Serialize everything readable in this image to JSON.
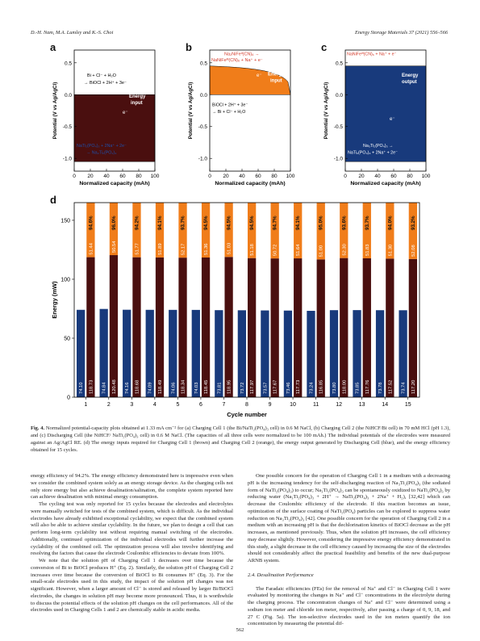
{
  "header": {
    "authors": "D.-H. Nam, M.A. Lumley and K.-S. Choi",
    "journal": "Energy Storage Materials 37 (2021) 556–566"
  },
  "colors": {
    "dark_red": "#4a0f0f",
    "orange": "#f07d1a",
    "blue": "#183a7c",
    "ann_red": "#d23a2a",
    "ann_blue": "#1f4fa8"
  },
  "panels": {
    "a": {
      "letter": "a",
      "ylabel": "Potential (V vs Ag/AgCl)",
      "xlabel": "Normalized capacity (mAh)",
      "ann_top": "Bi + Cl⁻ + H₂O",
      "ann_top2": "→ BiOCl + 2H⁺ + 3e⁻",
      "ann_bot": "NaTi₂(PO₄)₃ + 2Na⁺ + 2e⁻",
      "ann_bot2": "→ Na₃Ti₂(PO₄)₃",
      "energy": "Energy",
      "energy2": "input",
      "electron": "e⁻"
    },
    "b": {
      "letter": "b",
      "ylabel": "Potential (V vs Ag/AgCl)",
      "xlabel": "Normalized capacity (mAh)",
      "ann_top": "Na₂NiFeᴵᴵ(CN)₆ →",
      "ann_top2": "NaNiFeᴵᴵᴵ(CN)₆ + Na⁺ + e⁻",
      "ann_bot": "BiOCl + 2H⁺ + 3e⁻",
      "ann_bot2": "→ Bi + Cl⁻ + H₂O",
      "energy": "Energy",
      "energy2": "input",
      "electron": "e⁻"
    },
    "c": {
      "letter": "c",
      "ylabel": "Potential (V vs Ag/AgCl)",
      "xlabel": "Normalized capacity (mAh)",
      "ann_top": "NaNiFeᴵᴵᴵ(CN)₆ + Na⁺ + e⁻",
      "ann_top2": "→ Na₂NiFeᴵᴵ(CN)₆",
      "ann_bot": "Na₃Ti₂(PO₄)₃ →",
      "ann_bot2": "NaTi₂(PO₄)₃ + 2Na⁺ + 2e⁻",
      "energy": "Energy",
      "energy2": "output",
      "electron": "e⁻"
    }
  },
  "chart_data": [
    {
      "panel": "a",
      "type": "area",
      "x_range": [
        0,
        100
      ],
      "ylim": [
        -1.2,
        0.7
      ],
      "xticks": [
        0,
        20,
        40,
        60,
        80,
        100
      ],
      "yticks": [
        -1.0,
        -0.5,
        0.0,
        0.5
      ],
      "top_curve": 0.0,
      "bottom_curve": -1.05
    },
    {
      "panel": "b",
      "type": "area",
      "x_range": [
        0,
        100
      ],
      "ylim": [
        -1.2,
        0.7
      ],
      "xticks": [
        0,
        20,
        40,
        60,
        80,
        100
      ],
      "yticks": [
        -1.0,
        -0.5,
        0.0,
        0.5
      ],
      "top_curve": 0.45,
      "bottom_curve": 0.0
    },
    {
      "panel": "c",
      "type": "area",
      "x_range": [
        0,
        100
      ],
      "ylim": [
        -1.2,
        0.7
      ],
      "xticks": [
        0,
        20,
        40,
        60,
        80,
        100
      ],
      "yticks": [
        -1.0,
        -0.5,
        0.0,
        0.5
      ],
      "top_curve": 0.45,
      "bottom_curve": -1.05
    },
    {
      "panel": "d",
      "type": "bar",
      "xlabel": "Cycle number",
      "ylabel": "Energy (mW)",
      "ylim": [
        0,
        165
      ],
      "yticks": [
        0,
        50,
        100,
        150
      ],
      "categories": [
        "1",
        "2",
        "3",
        "4",
        "5",
        "6",
        "7",
        "8",
        "9",
        "10",
        "11",
        "12",
        "13",
        "14",
        "15"
      ],
      "series": [
        {
          "name": "Charging Cell 1",
          "color": "#4a0f0f",
          "values": [
            118.73,
            120.48,
            118.68,
            118.49,
            118.34,
            118.45,
            118.95,
            117.97,
            117.67,
            117.73,
            116.85,
            118.0,
            117.76,
            117.52,
            117.2
          ]
        },
        {
          "name": "Charging Cell 2",
          "color": "#f07d1a",
          "values": [
            51.44,
            50.54,
            51.77,
            51.89,
            52.17,
            51.36,
            51.03,
            51.18,
            50.72,
            51.64,
            51.0,
            52.3,
            51.83,
            51.3,
            52.08
          ]
        },
        {
          "name": "Discharging Cell",
          "color": "#183a7c",
          "values": [
            74.1,
            74.84,
            74.16,
            74.09,
            74.06,
            74.03,
            73.81,
            73.72,
            73.57,
            73.46,
            73.24,
            73.8,
            73.85,
            73.78,
            73.74
          ]
        }
      ],
      "efficiency_labels": [
        "94.6%",
        "96.0%",
        "94.2%",
        "94.1%",
        "93.7%",
        "94.5%",
        "94.5%",
        "94.5%",
        "94.7%",
        "94.1%",
        "95.0%",
        "93.6%",
        "93.7%",
        "94.0%",
        "93.2%"
      ],
      "note": "pairs of bars: left bar = discharging (blue), right bar stacked = charging cell 1 (dark red) bottom + charging cell 2 (orange) top"
    }
  ],
  "caption": {
    "label": "Fig. 4.",
    "text": "Normalized potential-capacity plots obtained at 1.33 mA cm⁻² for (a) Charging Cell 1 (the Bi/NaTi₂(PO₄)₃ cell) in 0.6 M NaCl, (b) Charging Cell 2 (the NiHCF/Bi cell) in 70 mM HCl (pH 1.3), and (c) Discharging Cell (the NiHCF/ NaTi₂(PO₄)₃ cell) in 0.6 M NaCl. (The capacities of all three cells were normalized to be 100 mAh.) The individual potentials of the electrodes were measured against an Ag/AgCl RE. (d) The energy inputs required for Charging Cell 1 (brown) and Charging Cell 2 (orange), the energy output generated by Discharging Cell (blue), and the energy efficiency obtained for 15 cycles."
  },
  "left_column": [
    "energy efficiency of 94.2%. The energy efficiency demonstrated here is impressive even when we consider the combined system solely as an energy storage device. As the charging cells not only store energy but also achieve desalination/salination, the complete system reported here can achieve desalination with minimal energy consumption.",
    "The cycling test was only reported for 15 cycles because the electrodes and electrolytes were manually switched for tests of the combined system, which is difficult. As the individual electrodes have already exhibited exceptional cyclability, we expect that the combined system will also be able to achieve similar cyclability. In the future, we plan to design a cell that can perform long-term cyclability test without requiring manual switching of the electrodes. Additionally, continued optimization of the individual electrodes will further increase the cyclability of the combined cell. The optimization process will also involve identifying and resolving the factors that cause the electrode Coulombic efficiencies to deviate from 100%.",
    "We note that the solution pH of Charging Cell 1 decreases over time because the conversion of Bi to BiOCl produces H⁺ (Eq. 2). Similarly, the solution pH of Charging Cell 2 increases over time because the conversion of BiOCl to Bi consumes H⁺ (Eq. 3). For the small-scale electrodes used in this study, the impact of the solution pH changes was not significant. However, when a larger amount of Cl⁻ is stored and released by larger Bi/BiOCl electrodes, the changes in solution pH may become more pronounced. Thus, it is worthwhile to discuss the potential effects of the solution pH changes on the cell performances. All of the electrodes used in Charging Cells 1 and 2 are chemically stable in acidic media."
  ],
  "right_column": [
    "One possible concern for the operation of Charging Cell 1 in a medium with a decreasing pH is the increasing tendency for the self-discharging reaction of Na₃Ti₂(PO₄)₃ (the sodiated form of NaTi₂(PO₄)₃) to occur; Na₃Ti₂(PO₄)₃ can be spontaneously oxidized to NaTi₂(PO₄)₃ by reducing water (Na₃Ti₂(PO₄)₃ + 2H⁺ → NaTi₂(PO₄)₃ + 2Na⁺ + H₂), [32,42] which can decrease the Coulombic efficiency of the electrode. If this reaction becomes an issue, optimization of the surface coating of NaTi₂(PO₄) particles can be explored to suppress water reduction on Na₃Ti₂(PO₄)₃ [42]. One possible concern for the operation of Charging Cell 2 in a medium with an increasing pH is that the dechlorination kinetics of BiOCl decrease as the pH increases, as mentioned previously. Thus, when the solution pH increases, the cell efficiency may decrease slightly. However, considering the impressive energy efficiency demonstrated in this study, a slight decrease in the cell efficiency caused by increasing the size of the electrodes should not considerably affect the practical feasibility and benefits of the new dual-purpose ARNB system.",
    "The Faradaic efficiencies (FEs) for the removal of Na⁺ and Cl⁻ in Charging Cell 1 were evaluated by monitoring the changes in Na⁺ and Cl⁻ concentrations in the electrolyte during the charging process. The concentration changes of Na⁺ and Cl⁻ were determined using a sodium ion meter and chloride ion meter, respectively, after passing a charge of 0, 9, 18, and 27 C (Fig. 5a). The ion-selective electrodes used in the ion meters quantify the ion concentration by measuring the potential dif-"
  ],
  "section_title": "2.4. Desalination Performance",
  "page_number": "562"
}
